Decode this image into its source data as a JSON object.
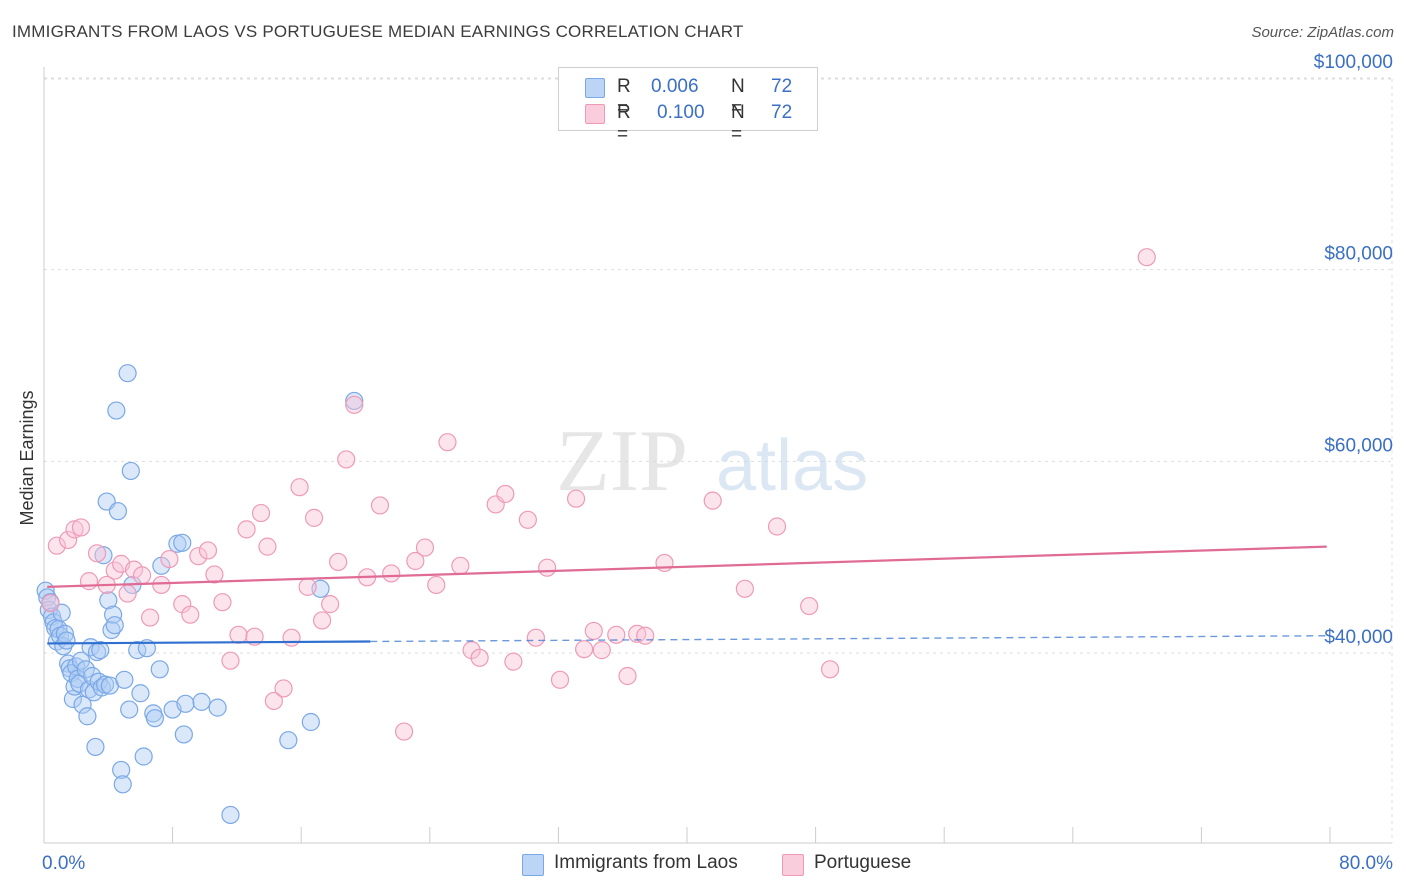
{
  "header": {
    "title": "IMMIGRANTS FROM LAOS VS PORTUGUESE MEDIAN EARNINGS CORRELATION CHART",
    "source": "Source: ZipAtlas.com"
  },
  "legend": {
    "rows": [
      {
        "r_label": "R =",
        "r_value": "0.006",
        "n_label": "N =",
        "n_value": "72"
      },
      {
        "r_label": "R =",
        "r_value": "0.100",
        "n_label": "N =",
        "n_value": "72"
      }
    ]
  },
  "colors": {
    "series1_fill": "#aecbf5",
    "series1_stroke": "#7aa8e6",
    "series1_line": "#2f6fcf",
    "series2_fill": "#f8c4d6",
    "series2_stroke": "#ee9ab6",
    "series2_line": "#e06b95",
    "grid": "#dddddd",
    "axis_text": "#3b6fc4"
  },
  "watermark": {
    "zip": "ZIP",
    "atlas": "atlas"
  },
  "chart_data": {
    "type": "scatter",
    "title": "IMMIGRANTS FROM LAOS VS PORTUGUESE MEDIAN EARNINGS CORRELATION CHART",
    "ylabel": "Median Earnings",
    "xlim": [
      0,
      80
    ],
    "ylim": [
      22000,
      104000
    ],
    "x_ticks_labels": [
      "0.0%",
      "80.0%"
    ],
    "y_ticks": [
      {
        "value": 40000,
        "label": "$40,000"
      },
      {
        "value": 60000,
        "label": "$60,000"
      },
      {
        "value": 80000,
        "label": "$80,000"
      },
      {
        "value": 100000,
        "label": "$100,000"
      }
    ],
    "grid": true,
    "series": [
      {
        "name": "Immigrants from Laos",
        "stats": {
          "R": 0.006,
          "N": 72
        },
        "trend": {
          "x_start": 0.2,
          "y_start": 41000,
          "x_solid_end": 20.3,
          "x_end": 79.8,
          "y_end": 41800
        },
        "points": [
          [
            0.1,
            46500
          ],
          [
            0.2,
            45800
          ],
          [
            0.3,
            44500
          ],
          [
            0.4,
            45300
          ],
          [
            0.5,
            43800
          ],
          [
            0.6,
            43200
          ],
          [
            0.7,
            42600
          ],
          [
            0.8,
            41200
          ],
          [
            0.9,
            42500
          ],
          [
            1.0,
            41800
          ],
          [
            1.1,
            44200
          ],
          [
            1.2,
            40700
          ],
          [
            1.3,
            42000
          ],
          [
            1.4,
            41300
          ],
          [
            1.5,
            38900
          ],
          [
            1.6,
            38400
          ],
          [
            1.7,
            37900
          ],
          [
            1.8,
            35200
          ],
          [
            1.9,
            36500
          ],
          [
            2.0,
            38600
          ],
          [
            2.1,
            37300
          ],
          [
            2.2,
            36800
          ],
          [
            2.3,
            39200
          ],
          [
            2.4,
            34600
          ],
          [
            2.6,
            38300
          ],
          [
            2.7,
            33400
          ],
          [
            2.8,
            36200
          ],
          [
            2.9,
            40600
          ],
          [
            3.0,
            37600
          ],
          [
            3.1,
            35900
          ],
          [
            3.2,
            30200
          ],
          [
            3.3,
            40100
          ],
          [
            3.4,
            37000
          ],
          [
            3.5,
            40300
          ],
          [
            3.6,
            36400
          ],
          [
            3.7,
            50200
          ],
          [
            3.8,
            36700
          ],
          [
            3.9,
            55800
          ],
          [
            4.0,
            45500
          ],
          [
            4.1,
            36600
          ],
          [
            4.2,
            42400
          ],
          [
            4.3,
            44000
          ],
          [
            4.4,
            42900
          ],
          [
            4.5,
            65300
          ],
          [
            4.6,
            54800
          ],
          [
            4.8,
            27800
          ],
          [
            4.9,
            26300
          ],
          [
            5.0,
            37200
          ],
          [
            5.2,
            69200
          ],
          [
            5.3,
            34100
          ],
          [
            5.4,
            59000
          ],
          [
            5.5,
            47100
          ],
          [
            5.8,
            40300
          ],
          [
            6.0,
            35800
          ],
          [
            6.2,
            29200
          ],
          [
            6.4,
            40500
          ],
          [
            6.8,
            33700
          ],
          [
            6.9,
            33200
          ],
          [
            7.2,
            38300
          ],
          [
            7.3,
            49100
          ],
          [
            8.0,
            34100
          ],
          [
            8.3,
            51400
          ],
          [
            8.6,
            51500
          ],
          [
            8.7,
            31500
          ],
          [
            8.8,
            34700
          ],
          [
            9.8,
            34900
          ],
          [
            10.8,
            34300
          ],
          [
            11.6,
            23100
          ],
          [
            15.2,
            30900
          ],
          [
            16.6,
            32800
          ],
          [
            17.2,
            46700
          ],
          [
            19.3,
            66300
          ]
        ]
      },
      {
        "name": "Portuguese",
        "stats": {
          "R": 0.1,
          "N": 72
        },
        "trend": {
          "x_start": 0.2,
          "y_start": 46900,
          "x_end": 79.8,
          "y_end": 51100
        },
        "points": [
          [
            0.4,
            45200
          ],
          [
            0.8,
            51200
          ],
          [
            1.5,
            51800
          ],
          [
            1.9,
            52900
          ],
          [
            2.3,
            53100
          ],
          [
            2.8,
            47500
          ],
          [
            3.3,
            50400
          ],
          [
            3.9,
            47100
          ],
          [
            4.4,
            48600
          ],
          [
            4.8,
            49300
          ],
          [
            5.2,
            46200
          ],
          [
            5.6,
            48700
          ],
          [
            6.1,
            48100
          ],
          [
            6.6,
            43700
          ],
          [
            7.3,
            47100
          ],
          [
            7.8,
            49800
          ],
          [
            8.6,
            45100
          ],
          [
            9.1,
            44000
          ],
          [
            9.6,
            50100
          ],
          [
            10.2,
            50700
          ],
          [
            10.6,
            48200
          ],
          [
            11.1,
            45300
          ],
          [
            11.6,
            39200
          ],
          [
            12.1,
            41900
          ],
          [
            12.6,
            52900
          ],
          [
            13.1,
            41700
          ],
          [
            13.5,
            54600
          ],
          [
            13.9,
            51100
          ],
          [
            14.3,
            35000
          ],
          [
            14.9,
            36300
          ],
          [
            15.4,
            41600
          ],
          [
            15.9,
            57300
          ],
          [
            16.4,
            46900
          ],
          [
            16.8,
            54100
          ],
          [
            17.3,
            43400
          ],
          [
            17.8,
            45100
          ],
          [
            18.3,
            49500
          ],
          [
            18.8,
            60200
          ],
          [
            19.3,
            65900
          ],
          [
            20.1,
            47900
          ],
          [
            20.9,
            55400
          ],
          [
            21.6,
            48300
          ],
          [
            22.4,
            31800
          ],
          [
            23.1,
            49600
          ],
          [
            23.7,
            51000
          ],
          [
            24.4,
            47100
          ],
          [
            25.1,
            62000
          ],
          [
            25.9,
            49100
          ],
          [
            26.6,
            40300
          ],
          [
            27.1,
            39500
          ],
          [
            28.1,
            55500
          ],
          [
            28.7,
            56600
          ],
          [
            29.2,
            39100
          ],
          [
            30.1,
            53900
          ],
          [
            30.6,
            41600
          ],
          [
            31.3,
            48900
          ],
          [
            32.1,
            37200
          ],
          [
            33.1,
            56100
          ],
          [
            33.6,
            40400
          ],
          [
            34.2,
            42300
          ],
          [
            34.7,
            40300
          ],
          [
            35.6,
            41900
          ],
          [
            36.3,
            37600
          ],
          [
            36.9,
            42000
          ],
          [
            37.4,
            41800
          ],
          [
            38.6,
            49400
          ],
          [
            41.6,
            55900
          ],
          [
            43.6,
            46700
          ],
          [
            45.6,
            53200
          ],
          [
            47.6,
            44900
          ],
          [
            48.9,
            38300
          ],
          [
            68.6,
            81300
          ]
        ]
      }
    ]
  },
  "bottom_legend": {
    "items": [
      {
        "label": "Immigrants from Laos"
      },
      {
        "label": "Portuguese"
      }
    ]
  }
}
